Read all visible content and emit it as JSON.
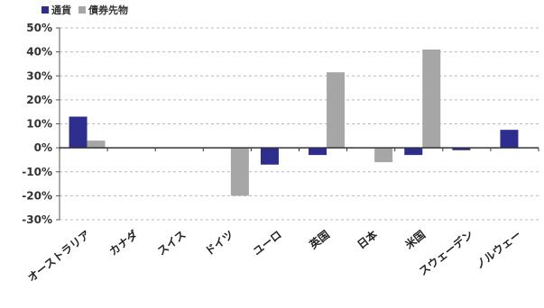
{
  "chart_data": {
    "type": "bar",
    "title": "",
    "xlabel": "",
    "ylabel": "",
    "categories": [
      "オーストラリア",
      "カナダ",
      "スイス",
      "ドイツ",
      "ユーロ",
      "英国",
      "日本",
      "米国",
      "スウェーデン",
      "ノルウェー"
    ],
    "series": [
      {
        "name": "通貨",
        "color": "#2e2e8f",
        "values": [
          13,
          0,
          0,
          0,
          -7,
          -3,
          0,
          -3,
          -1,
          7.5
        ]
      },
      {
        "name": "債券先物",
        "color": "#a6a6a6",
        "values": [
          3,
          0,
          0,
          -20,
          0,
          31.5,
          -6,
          41,
          0,
          0
        ]
      }
    ],
    "ylim": [
      -30,
      50
    ],
    "yticks": [
      "-30%",
      "-20%",
      "-10%",
      "0%",
      "10%",
      "20%",
      "30%",
      "40%",
      "50%"
    ],
    "grid": true,
    "legend": "top-left"
  }
}
